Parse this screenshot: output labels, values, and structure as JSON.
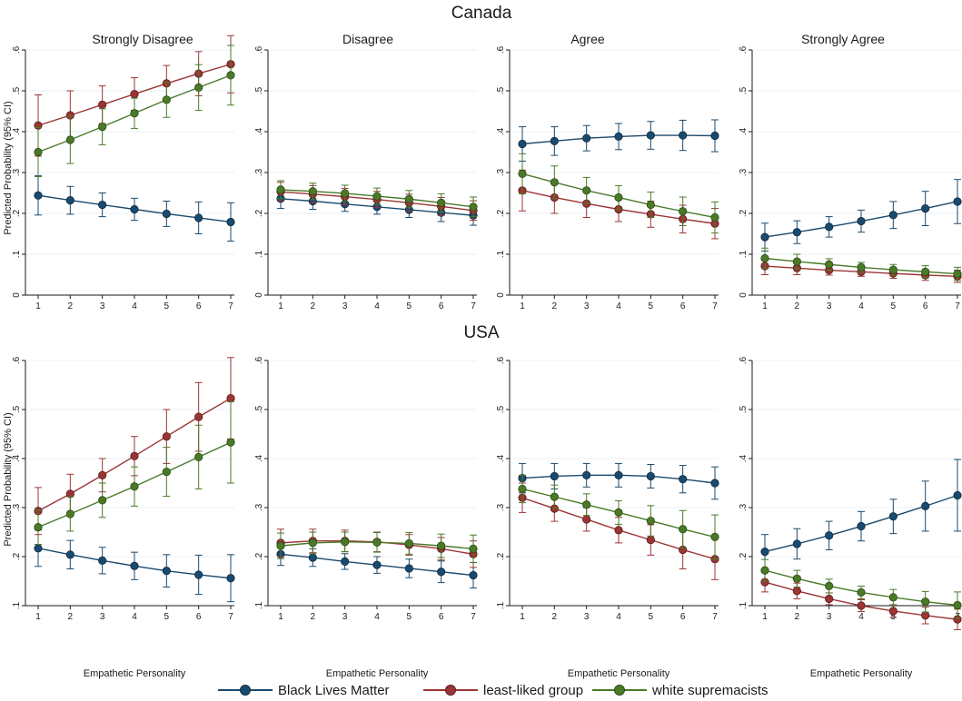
{
  "chart_data": {
    "type": "line",
    "x": [
      1,
      2,
      3,
      4,
      5,
      6,
      7
    ],
    "xlabel": "Empathetic Personality",
    "ylabel": "Predicted Probability (95% CI)",
    "legend": {
      "placement": "bottom",
      "entries": [
        {
          "name": "Black Lives Matter",
          "color": "#1a4a6e"
        },
        {
          "name": "least-liked group",
          "color": "#9b3535"
        },
        {
          "name": "white supremacists",
          "color": "#4a7a28"
        }
      ]
    },
    "rows": [
      {
        "title": "Canada",
        "ylim": [
          0,
          0.6
        ],
        "yticks": [
          0,
          0.1,
          0.2,
          0.3,
          0.4,
          0.5,
          0.6
        ],
        "ytick_labels": [
          "0",
          ".1",
          ".2",
          ".3",
          ".4",
          ".5",
          ".6"
        ],
        "panels": [
          {
            "title": "Strongly Disagree",
            "series": [
              {
                "name": "Black Lives Matter",
                "values": [
                  0.244,
                  0.232,
                  0.221,
                  0.21,
                  0.199,
                  0.189,
                  0.179
                ],
                "lower": [
                  0.196,
                  0.198,
                  0.192,
                  0.183,
                  0.168,
                  0.15,
                  0.132
                ],
                "upper": [
                  0.292,
                  0.266,
                  0.25,
                  0.237,
                  0.23,
                  0.228,
                  0.226
                ]
              },
              {
                "name": "least-liked group",
                "values": [
                  0.415,
                  0.44,
                  0.466,
                  0.492,
                  0.518,
                  0.542,
                  0.565
                ],
                "lower": [
                  0.34,
                  0.38,
                  0.42,
                  0.452,
                  0.474,
                  0.488,
                  0.495
                ],
                "upper": [
                  0.49,
                  0.5,
                  0.512,
                  0.532,
                  0.562,
                  0.596,
                  0.635
                ]
              },
              {
                "name": "white supremacists",
                "values": [
                  0.35,
                  0.38,
                  0.412,
                  0.445,
                  0.478,
                  0.508,
                  0.538
                ],
                "lower": [
                  0.29,
                  0.322,
                  0.368,
                  0.408,
                  0.435,
                  0.452,
                  0.465
                ],
                "upper": [
                  0.41,
                  0.438,
                  0.456,
                  0.482,
                  0.521,
                  0.564,
                  0.611
                ]
              }
            ]
          },
          {
            "title": "Disagree",
            "series": [
              {
                "name": "Black Lives Matter",
                "values": [
                  0.236,
                  0.23,
                  0.223,
                  0.216,
                  0.209,
                  0.202,
                  0.195
                ],
                "lower": [
                  0.212,
                  0.21,
                  0.205,
                  0.198,
                  0.19,
                  0.18,
                  0.171
                ],
                "upper": [
                  0.26,
                  0.25,
                  0.241,
                  0.234,
                  0.228,
                  0.224,
                  0.219
                ]
              },
              {
                "name": "least-liked group",
                "values": [
                  0.253,
                  0.247,
                  0.241,
                  0.234,
                  0.226,
                  0.217,
                  0.207
                ],
                "lower": [
                  0.23,
                  0.226,
                  0.221,
                  0.214,
                  0.205,
                  0.195,
                  0.183
                ],
                "upper": [
                  0.276,
                  0.268,
                  0.261,
                  0.254,
                  0.247,
                  0.239,
                  0.231
                ]
              },
              {
                "name": "white supremacists",
                "values": [
                  0.258,
                  0.254,
                  0.249,
                  0.242,
                  0.235,
                  0.226,
                  0.216
                ],
                "lower": [
                  0.236,
                  0.234,
                  0.229,
                  0.222,
                  0.214,
                  0.204,
                  0.192
                ],
                "upper": [
                  0.28,
                  0.274,
                  0.269,
                  0.262,
                  0.256,
                  0.248,
                  0.24
                ]
              }
            ]
          },
          {
            "title": "Agree",
            "series": [
              {
                "name": "Black Lives Matter",
                "values": [
                  0.37,
                  0.377,
                  0.384,
                  0.388,
                  0.391,
                  0.391,
                  0.39
                ],
                "lower": [
                  0.328,
                  0.342,
                  0.353,
                  0.356,
                  0.357,
                  0.354,
                  0.351
                ],
                "upper": [
                  0.412,
                  0.412,
                  0.415,
                  0.42,
                  0.425,
                  0.428,
                  0.429
                ]
              },
              {
                "name": "least-liked group",
                "values": [
                  0.256,
                  0.239,
                  0.224,
                  0.21,
                  0.198,
                  0.186,
                  0.175
                ],
                "lower": [
                  0.206,
                  0.2,
                  0.19,
                  0.18,
                  0.166,
                  0.152,
                  0.138
                ],
                "upper": [
                  0.306,
                  0.278,
                  0.258,
                  0.24,
                  0.23,
                  0.22,
                  0.212
                ]
              },
              {
                "name": "white supremacists",
                "values": [
                  0.297,
                  0.276,
                  0.256,
                  0.239,
                  0.221,
                  0.205,
                  0.19
                ],
                "lower": [
                  0.248,
                  0.236,
                  0.224,
                  0.21,
                  0.19,
                  0.17,
                  0.152
                ],
                "upper": [
                  0.346,
                  0.316,
                  0.288,
                  0.268,
                  0.252,
                  0.24,
                  0.228
                ]
              }
            ]
          },
          {
            "title": "Strongly Agree",
            "series": [
              {
                "name": "Black Lives Matter",
                "values": [
                  0.142,
                  0.154,
                  0.167,
                  0.181,
                  0.196,
                  0.212,
                  0.229
                ],
                "lower": [
                  0.108,
                  0.126,
                  0.142,
                  0.154,
                  0.163,
                  0.17,
                  0.175
                ],
                "upper": [
                  0.176,
                  0.182,
                  0.192,
                  0.208,
                  0.229,
                  0.254,
                  0.283
                ]
              },
              {
                "name": "least-liked group",
                "values": [
                  0.071,
                  0.066,
                  0.061,
                  0.057,
                  0.053,
                  0.049,
                  0.046
                ],
                "lower": [
                  0.05,
                  0.05,
                  0.049,
                  0.046,
                  0.041,
                  0.036,
                  0.031
                ],
                "upper": [
                  0.092,
                  0.082,
                  0.073,
                  0.068,
                  0.065,
                  0.062,
                  0.061
                ]
              },
              {
                "name": "white supremacists",
                "values": [
                  0.09,
                  0.082,
                  0.075,
                  0.068,
                  0.062,
                  0.057,
                  0.052
                ],
                "lower": [
                  0.065,
                  0.064,
                  0.061,
                  0.056,
                  0.049,
                  0.042,
                  0.036
                ],
                "upper": [
                  0.115,
                  0.1,
                  0.089,
                  0.08,
                  0.075,
                  0.072,
                  0.068
                ]
              }
            ]
          }
        ]
      },
      {
        "title": "USA",
        "ylim": [
          0.1,
          0.6
        ],
        "yticks": [
          0.1,
          0.2,
          0.3,
          0.4,
          0.5,
          0.6
        ],
        "ytick_labels": [
          ".1",
          ".2",
          ".3",
          ".4",
          ".5",
          ".6"
        ],
        "panels": [
          {
            "title": "",
            "series": [
              {
                "name": "Black Lives Matter",
                "values": [
                  0.217,
                  0.204,
                  0.192,
                  0.181,
                  0.171,
                  0.163,
                  0.156
                ],
                "lower": [
                  0.18,
                  0.175,
                  0.165,
                  0.153,
                  0.138,
                  0.123,
                  0.108
                ],
                "upper": [
                  0.254,
                  0.233,
                  0.219,
                  0.209,
                  0.204,
                  0.203,
                  0.204
                ]
              },
              {
                "name": "least-liked group",
                "values": [
                  0.293,
                  0.328,
                  0.366,
                  0.405,
                  0.445,
                  0.485,
                  0.523
                ],
                "lower": [
                  0.245,
                  0.288,
                  0.332,
                  0.365,
                  0.39,
                  0.415,
                  0.44
                ],
                "upper": [
                  0.341,
                  0.368,
                  0.4,
                  0.445,
                  0.5,
                  0.555,
                  0.606
                ]
              },
              {
                "name": "white supremacists",
                "values": [
                  0.26,
                  0.287,
                  0.315,
                  0.343,
                  0.373,
                  0.403,
                  0.433
                ],
                "lower": [
                  0.225,
                  0.252,
                  0.28,
                  0.303,
                  0.323,
                  0.338,
                  0.35
                ],
                "upper": [
                  0.295,
                  0.322,
                  0.35,
                  0.383,
                  0.423,
                  0.468,
                  0.516
                ]
              }
            ]
          },
          {
            "title": "",
            "series": [
              {
                "name": "Black Lives Matter",
                "values": [
                  0.205,
                  0.198,
                  0.19,
                  0.183,
                  0.176,
                  0.169,
                  0.162
                ],
                "lower": [
                  0.182,
                  0.18,
                  0.174,
                  0.166,
                  0.157,
                  0.147,
                  0.136
                ],
                "upper": [
                  0.228,
                  0.216,
                  0.206,
                  0.2,
                  0.195,
                  0.191,
                  0.188
                ]
              },
              {
                "name": "least-liked group",
                "values": [
                  0.228,
                  0.232,
                  0.232,
                  0.23,
                  0.224,
                  0.216,
                  0.205
                ],
                "lower": [
                  0.2,
                  0.208,
                  0.21,
                  0.21,
                  0.203,
                  0.193,
                  0.178
                ],
                "upper": [
                  0.256,
                  0.256,
                  0.254,
                  0.25,
                  0.245,
                  0.239,
                  0.232
                ]
              },
              {
                "name": "white supremacists",
                "values": [
                  0.222,
                  0.228,
                  0.23,
                  0.229,
                  0.227,
                  0.222,
                  0.216
                ],
                "lower": [
                  0.196,
                  0.206,
                  0.21,
                  0.209,
                  0.205,
                  0.198,
                  0.188
                ],
                "upper": [
                  0.248,
                  0.25,
                  0.25,
                  0.249,
                  0.249,
                  0.246,
                  0.244
                ]
              }
            ]
          },
          {
            "title": "",
            "series": [
              {
                "name": "Black Lives Matter",
                "values": [
                  0.36,
                  0.364,
                  0.366,
                  0.366,
                  0.364,
                  0.358,
                  0.35
                ],
                "lower": [
                  0.33,
                  0.338,
                  0.342,
                  0.342,
                  0.34,
                  0.33,
                  0.317
                ],
                "upper": [
                  0.39,
                  0.39,
                  0.39,
                  0.39,
                  0.388,
                  0.386,
                  0.383
                ]
              },
              {
                "name": "least-liked group",
                "values": [
                  0.32,
                  0.298,
                  0.276,
                  0.254,
                  0.234,
                  0.214,
                  0.195
                ],
                "lower": [
                  0.29,
                  0.272,
                  0.252,
                  0.228,
                  0.203,
                  0.175,
                  0.153
                ],
                "upper": [
                  0.35,
                  0.324,
                  0.3,
                  0.28,
                  0.265,
                  0.253,
                  0.237
                ]
              },
              {
                "name": "white supremacists",
                "values": [
                  0.338,
                  0.322,
                  0.306,
                  0.29,
                  0.273,
                  0.256,
                  0.24
                ],
                "lower": [
                  0.31,
                  0.298,
                  0.284,
                  0.266,
                  0.242,
                  0.218,
                  0.195
                ],
                "upper": [
                  0.366,
                  0.346,
                  0.328,
                  0.314,
                  0.304,
                  0.294,
                  0.285
                ]
              }
            ]
          },
          {
            "title": "",
            "series": [
              {
                "name": "Black Lives Matter",
                "values": [
                  0.21,
                  0.226,
                  0.243,
                  0.262,
                  0.282,
                  0.303,
                  0.325
                ],
                "lower": [
                  0.175,
                  0.195,
                  0.214,
                  0.232,
                  0.247,
                  0.252,
                  0.252
                ],
                "upper": [
                  0.245,
                  0.257,
                  0.272,
                  0.292,
                  0.317,
                  0.354,
                  0.398
                ]
              },
              {
                "name": "least-liked group",
                "values": [
                  0.148,
                  0.13,
                  0.114,
                  0.1,
                  0.089,
                  0.08,
                  0.072
                ],
                "lower": [
                  0.128,
                  0.114,
                  0.102,
                  0.088,
                  0.076,
                  0.063,
                  0.051
                ],
                "upper": [
                  0.168,
                  0.146,
                  0.126,
                  0.112,
                  0.102,
                  0.097,
                  0.093
                ]
              },
              {
                "name": "white supremacists",
                "values": [
                  0.172,
                  0.155,
                  0.14,
                  0.127,
                  0.117,
                  0.108,
                  0.101
                ],
                "lower": [
                  0.15,
                  0.138,
                  0.126,
                  0.114,
                  0.101,
                  0.087,
                  0.074
                ],
                "upper": [
                  0.194,
                  0.172,
                  0.154,
                  0.14,
                  0.133,
                  0.129,
                  0.128
                ]
              }
            ]
          }
        ]
      }
    ]
  }
}
